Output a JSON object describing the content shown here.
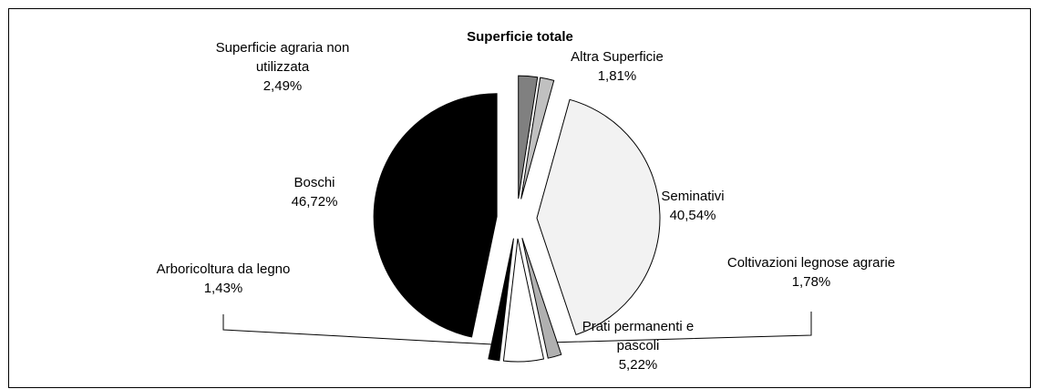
{
  "chart_data": {
    "type": "pie",
    "title": "Superficie totale",
    "categories": [
      "Superficie agraria non utilizzata",
      "Altra Superficie",
      "Seminativi",
      "Coltivazioni legnose agrarie",
      "Prati permanenti e pascoli",
      "Arboricoltura da legno",
      "Boschi"
    ],
    "values": [
      2.49,
      1.81,
      40.54,
      1.78,
      5.22,
      1.43,
      46.72
    ],
    "value_labels": [
      "2,49%",
      "1,81%",
      "40,54%",
      "1,78%",
      "5,22%",
      "1,43%",
      "46,72%"
    ],
    "colors": [
      "#808080",
      "#c0c0c0",
      "#f2f2f2",
      "#b0b0b0",
      "#ffffff",
      "#000000",
      "#000000"
    ]
  }
}
